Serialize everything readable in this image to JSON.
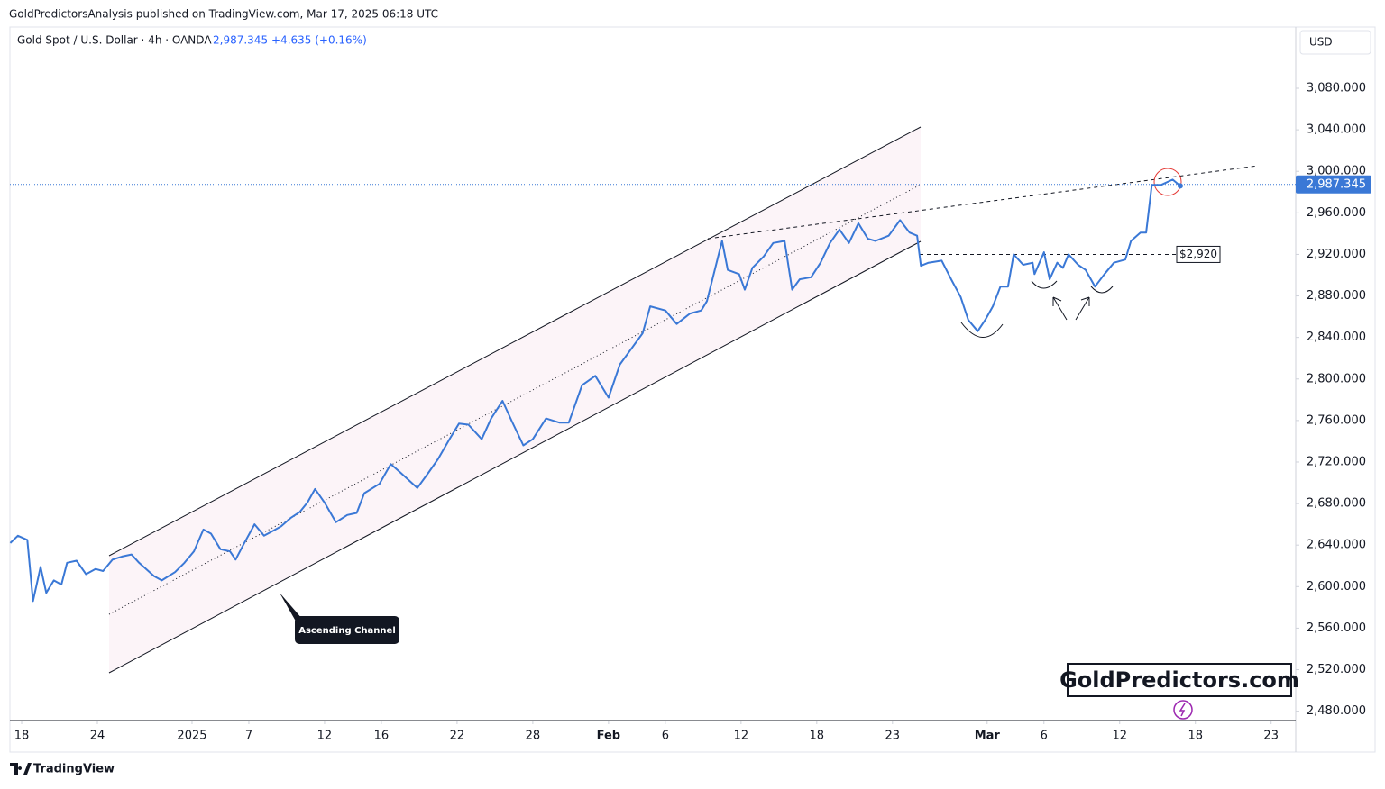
{
  "header": {
    "publisher": "GoldPredictorsAnalysis published on TradingView.com, Mar 17, 2025 06:18 UTC",
    "symbol": "Gold Spot / U.S. Dollar · 4h · OANDA",
    "change": "+4.635 (+0.16%)",
    "currency": "USD"
  },
  "footer": {
    "brand": "TradingView"
  },
  "chart_data": {
    "type": "line",
    "x": [
      -0.6,
      -0.2,
      0.3,
      0.6,
      1.0,
      1.3,
      1.7,
      2.1,
      2.4,
      2.9,
      3.4,
      3.9,
      4.3,
      4.8,
      5.3,
      5.8,
      6.2,
      7.0,
      7.4,
      8.1,
      8.6,
      9.1,
      9.6,
      10.0,
      10.5,
      11.0,
      11.3,
      11.7,
      12.3,
      12.8,
      13.2,
      13.7,
      14.2,
      14.7,
      15.1,
      15.5,
      16.0,
      16.6,
      17.2,
      17.7,
      18.1,
      18.9,
      19.5,
      20.0,
      20.9,
      21.5,
      22.0,
      22.6,
      23.1,
      23.6,
      24.3,
      24.8,
      25.4,
      25.9,
      26.5,
      27.0,
      27.7,
      28.4,
      28.9,
      29.6,
      30.3,
      31.0,
      31.6,
      32.2,
      32.8,
      33.2,
      34.0,
      34.6,
      35.3,
      35.9,
      36.2,
      37.0,
      37.3,
      37.9,
      38.2,
      38.6,
      39.2,
      39.7,
      40.3,
      40.7,
      41.1,
      41.7,
      42.2,
      42.7,
      43.2,
      43.7,
      44.2,
      44.7,
      45.1,
      45.8,
      46.4,
      46.9,
      47.3,
      47.5,
      47.9,
      48.6,
      49.1,
      49.6,
      50.0,
      50.5,
      50.9,
      51.3,
      51.7,
      52.1,
      52.4,
      52.9,
      53.4,
      53.5,
      54.0,
      54.3,
      54.7,
      55.0,
      55.3,
      55.8,
      56.2,
      56.7,
      57.2,
      57.7,
      58.3,
      58.6,
      59.1,
      59.4,
      59.7,
      60.2,
      60.8,
      61.2
    ],
    "series": [
      {
        "name": "Gold Spot / U.S. Dollar",
        "color": "#3a78d6",
        "values": [
          2642,
          2649,
          2645,
          2586,
          2619,
          2594,
          2606,
          2602,
          2623,
          2625,
          2612,
          2617,
          2615,
          2626,
          2629,
          2631,
          2623,
          2610,
          2606,
          2614,
          2623,
          2634,
          2655,
          2651,
          2636,
          2634,
          2626,
          2640,
          2660,
          2649,
          2653,
          2658,
          2666,
          2672,
          2681,
          2694,
          2681,
          2662,
          2669,
          2671,
          2690,
          2699,
          2718,
          2710,
          2695,
          2710,
          2723,
          2742,
          2757,
          2756,
          2742,
          2762,
          2779,
          2759,
          2736,
          2742,
          2762,
          2758,
          2758,
          2794,
          2803,
          2782,
          2814,
          2829,
          2844,
          2870,
          2866,
          2853,
          2863,
          2866,
          2875,
          2933,
          2905,
          2901,
          2886,
          2907,
          2918,
          2931,
          2933,
          2886,
          2896,
          2898,
          2912,
          2931,
          2944,
          2931,
          2950,
          2935,
          2933,
          2938,
          2953,
          2941,
          2938,
          2909,
          2912,
          2914,
          2896,
          2879,
          2857,
          2846,
          2857,
          2870,
          2889,
          2889,
          2920,
          2910,
          2912,
          2901,
          2922,
          2896,
          2912,
          2907,
          2920,
          2910,
          2905,
          2889,
          2901,
          2912,
          2915,
          2933,
          2941,
          2941,
          2987,
          2987,
          2992,
          2986
        ]
      }
    ],
    "last_price": {
      "value": 2987.345,
      "label": "2,987.345"
    },
    "xlim": [
      -0.62,
      67.3
    ],
    "xticks": [
      {
        "value": 0,
        "label": "18"
      },
      {
        "value": 4,
        "label": "24"
      },
      {
        "value": 9,
        "label": "2025"
      },
      {
        "value": 12,
        "label": "7"
      },
      {
        "value": 16,
        "label": "12"
      },
      {
        "value": 19,
        "label": "16"
      },
      {
        "value": 23,
        "label": "22"
      },
      {
        "value": 27,
        "label": "28"
      },
      {
        "value": 31,
        "label": "Feb"
      },
      {
        "value": 34,
        "label": "6"
      },
      {
        "value": 38,
        "label": "12"
      },
      {
        "value": 42,
        "label": "18"
      },
      {
        "value": 46,
        "label": "23"
      },
      {
        "value": 51,
        "label": "Mar"
      },
      {
        "value": 54,
        "label": "6"
      },
      {
        "value": 58,
        "label": "12"
      },
      {
        "value": 62,
        "label": "18"
      },
      {
        "value": 66,
        "label": "23"
      }
    ],
    "ylim": [
      2471,
      3139
    ],
    "yticks": [
      {
        "value": 2480,
        "label": "2,480.000"
      },
      {
        "value": 2520,
        "label": "2,520.000"
      },
      {
        "value": 2560,
        "label": "2,560.000"
      },
      {
        "value": 2600,
        "label": "2,600.000"
      },
      {
        "value": 2640,
        "label": "2,640.000"
      },
      {
        "value": 2680,
        "label": "2,680.000"
      },
      {
        "value": 2720,
        "label": "2,720.000"
      },
      {
        "value": 2760,
        "label": "2,760.000"
      },
      {
        "value": 2800,
        "label": "2,800.000"
      },
      {
        "value": 2840,
        "label": "2,840.000"
      },
      {
        "value": 2880,
        "label": "2,880.000"
      },
      {
        "value": 2920,
        "label": "2,920.000"
      },
      {
        "value": 2960,
        "label": "2,960.000"
      },
      {
        "value": 3000,
        "label": "3,000.000"
      },
      {
        "value": 3040,
        "label": "3,040.000"
      },
      {
        "value": 3080,
        "label": "3,080.000"
      }
    ],
    "annotations": [
      {
        "text": "Ascending Channel"
      },
      {
        "text": "$2,920",
        "value": 2920
      },
      {
        "text": "GoldPredictors.com"
      }
    ]
  }
}
